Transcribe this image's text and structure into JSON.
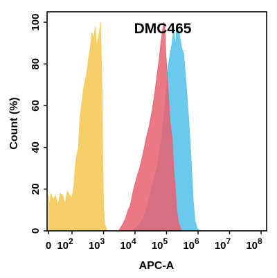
{
  "chart_data": {
    "type": "area",
    "title": "DMC465",
    "xlabel": "APC-A",
    "ylabel": "Count (%)",
    "x_scale": "log",
    "xlim": [
      0,
      100000000
    ],
    "ylim": [
      0,
      105
    ],
    "x_ticks": [
      {
        "value": 0,
        "label": "0"
      },
      {
        "value": 100,
        "label": "10",
        "exp": "2"
      },
      {
        "value": 1000,
        "label": "10",
        "exp": "3"
      },
      {
        "value": 10000,
        "label": "10",
        "exp": "4"
      },
      {
        "value": 100000,
        "label": "10",
        "exp": "5"
      },
      {
        "value": 1000000,
        "label": "10",
        "exp": "6"
      },
      {
        "value": 10000000,
        "label": "10",
        "exp": "7"
      },
      {
        "value": 100000000,
        "label": "10",
        "exp": "8"
      }
    ],
    "y_ticks": [
      {
        "value": 0,
        "label": "0"
      },
      {
        "value": 20,
        "label": "20"
      },
      {
        "value": 40,
        "label": "40"
      },
      {
        "value": 60,
        "label": "60"
      },
      {
        "value": 80,
        "label": "80"
      },
      {
        "value": 100,
        "label": "100"
      }
    ],
    "grid": false,
    "series": [
      {
        "color": "#f5c95a",
        "points": [
          [
            0,
            17
          ],
          [
            5,
            12
          ],
          [
            10,
            18
          ],
          [
            20,
            15
          ],
          [
            30,
            17
          ],
          [
            40,
            12
          ],
          [
            50,
            18
          ],
          [
            60,
            17
          ],
          [
            70,
            13
          ],
          [
            80,
            19
          ],
          [
            90,
            17
          ],
          [
            100,
            16
          ],
          [
            115,
            22
          ],
          [
            125,
            30
          ],
          [
            140,
            36
          ],
          [
            160,
            40
          ],
          [
            180,
            55
          ],
          [
            200,
            60
          ],
          [
            230,
            68
          ],
          [
            260,
            72
          ],
          [
            290,
            75
          ],
          [
            330,
            82
          ],
          [
            380,
            88
          ],
          [
            430,
            95
          ],
          [
            480,
            92
          ],
          [
            550,
            98
          ],
          [
            600,
            89
          ],
          [
            700,
            93
          ],
          [
            800,
            100
          ],
          [
            900,
            68
          ],
          [
            950,
            35
          ],
          [
            1000,
            12
          ],
          [
            1100,
            3
          ],
          [
            1300,
            0
          ]
        ]
      },
      {
        "color": "#5bc3ec",
        "points": [
          [
            8000,
            0
          ],
          [
            12000,
            2
          ],
          [
            18000,
            6
          ],
          [
            25000,
            12
          ],
          [
            35000,
            22
          ],
          [
            50000,
            30
          ],
          [
            70000,
            45
          ],
          [
            90000,
            60
          ],
          [
            110000,
            78
          ],
          [
            130000,
            85
          ],
          [
            150000,
            90
          ],
          [
            170000,
            98
          ],
          [
            190000,
            88
          ],
          [
            210000,
            99
          ],
          [
            250000,
            95
          ],
          [
            300000,
            88
          ],
          [
            350000,
            85
          ],
          [
            420000,
            70
          ],
          [
            500000,
            55
          ],
          [
            600000,
            35
          ],
          [
            700000,
            15
          ],
          [
            800000,
            5
          ],
          [
            950000,
            1
          ],
          [
            1200000,
            0
          ]
        ]
      },
      {
        "color": "#e86070",
        "points": [
          [
            3000,
            0
          ],
          [
            4000,
            3
          ],
          [
            5000,
            6
          ],
          [
            6000,
            10
          ],
          [
            7000,
            12
          ],
          [
            9000,
            20
          ],
          [
            11000,
            25
          ],
          [
            14000,
            30
          ],
          [
            18000,
            37
          ],
          [
            23000,
            45
          ],
          [
            28000,
            50
          ],
          [
            35000,
            58
          ],
          [
            42000,
            66
          ],
          [
            50000,
            75
          ],
          [
            58000,
            82
          ],
          [
            66000,
            90
          ],
          [
            74000,
            96
          ],
          [
            82000,
            100
          ],
          [
            88000,
            98
          ],
          [
            95000,
            85
          ],
          [
            110000,
            70
          ],
          [
            130000,
            52
          ],
          [
            150000,
            45
          ],
          [
            170000,
            30
          ],
          [
            190000,
            20
          ],
          [
            210000,
            10
          ],
          [
            240000,
            4
          ],
          [
            300000,
            0
          ]
        ]
      }
    ]
  }
}
